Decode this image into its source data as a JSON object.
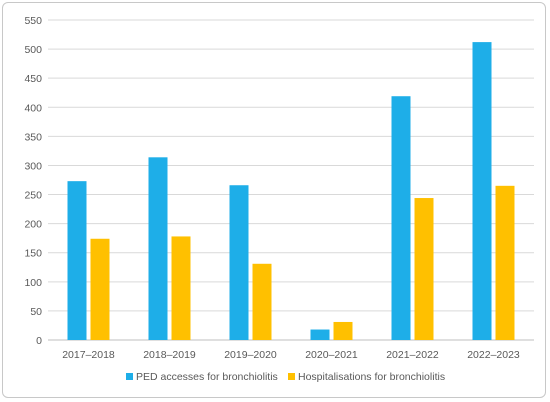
{
  "chart_data": {
    "type": "bar",
    "categories": [
      "2017–2018",
      "2018–2019",
      "2019–2020",
      "2020–2021",
      "2021–2022",
      "2022–2023"
    ],
    "series": [
      {
        "name": "PED accesses for bronchiolitis",
        "values": [
          273,
          314,
          266,
          18,
          419,
          512
        ],
        "color": "#1EAEE8"
      },
      {
        "name": "Hospitalisations for bronchiolitis",
        "values": [
          174,
          178,
          131,
          31,
          244,
          265
        ],
        "color": "#FFC000"
      }
    ],
    "yticks": [
      0,
      50,
      100,
      150,
      200,
      250,
      300,
      350,
      400,
      450,
      500,
      550
    ],
    "ylim": [
      0,
      550
    ],
    "grid": true,
    "legend_position": "bottom"
  }
}
